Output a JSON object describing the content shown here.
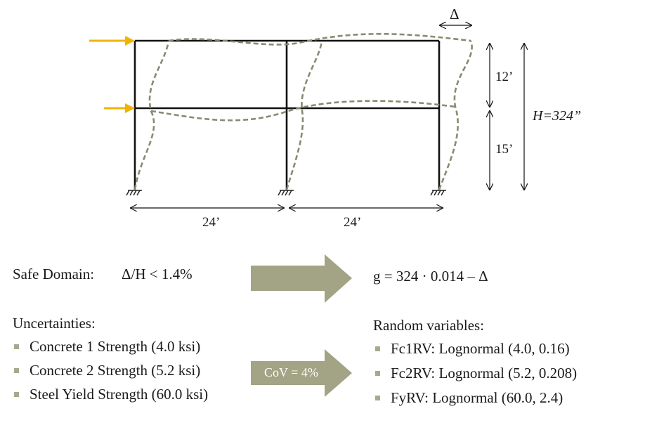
{
  "frame": {
    "span_left": "24’",
    "span_right": "24’",
    "story_upper": "12’",
    "story_lower": "15’",
    "height_label": "H=324”",
    "drift_label": "Δ"
  },
  "safe_domain": {
    "label": "Safe Domain:",
    "condition": "Δ/H < 1.4%"
  },
  "limit_state": "g = 324 · 0.014 – Δ",
  "cov_label": "CoV = 4%",
  "uncertainties": {
    "heading": "Uncertainties:",
    "items": [
      "Concrete 1 Strength (4.0 ksi)",
      "Concrete 2 Strength (5.2 ksi)",
      "Steel Yield Strength (60.0 ksi)"
    ]
  },
  "random_variables": {
    "heading": "Random variables:",
    "items": [
      "Fc1RV: Lognormal (4.0, 0.16)",
      "Fc2RV: Lognormal (5.2, 0.208)",
      "FyRV: Lognormal (60.0, 2.4)"
    ]
  },
  "colors": {
    "load_arrow": "#f0b400",
    "deformed": "#8a8a72",
    "block_arrow": "#a3a385",
    "bullet": "#a8a88e"
  }
}
